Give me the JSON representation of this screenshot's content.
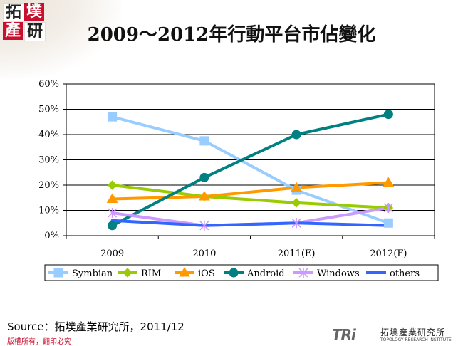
{
  "header": {
    "logo_glyphs": [
      "拓",
      "墣",
      "產",
      "研"
    ],
    "title": "2009～2012年行動平台市佔變化"
  },
  "footer": {
    "source": "Source：拓墣產業研究所，2011/12",
    "copyright": "版權所有，翻印必究",
    "tri_mark": "TRi",
    "tri_cn": "拓墣產業研究所",
    "tri_en": "TOPOLOGY RESEARCH INSTITUTE"
  },
  "chart_data": {
    "type": "line",
    "title": "",
    "xlabel": "",
    "ylabel": "",
    "categories": [
      "2009",
      "2010",
      "2011(E)",
      "2012(F)"
    ],
    "ylim": [
      0,
      60
    ],
    "yticks": [
      "0%",
      "10%",
      "20%",
      "30%",
      "40%",
      "50%",
      "60%"
    ],
    "grid": true,
    "legend_position": "bottom",
    "series": [
      {
        "name": "Symbian",
        "values": [
          47,
          37.5,
          18,
          5
        ],
        "color": "#99ccff",
        "marker": "square"
      },
      {
        "name": "RIM",
        "values": [
          20,
          15.5,
          13,
          11
        ],
        "color": "#99cc00",
        "marker": "diamond"
      },
      {
        "name": "iOS",
        "values": [
          14.5,
          15.5,
          19,
          21
        ],
        "color": "#ff9900",
        "marker": "triangle"
      },
      {
        "name": "Android",
        "values": [
          4,
          23,
          40,
          48
        ],
        "color": "#008080",
        "marker": "circle"
      },
      {
        "name": "Windows",
        "values": [
          9,
          4,
          5,
          11
        ],
        "color": "#cc99ff",
        "marker": "star"
      },
      {
        "name": "others",
        "values": [
          6,
          4,
          5,
          4
        ],
        "color": "#3366ff",
        "marker": "none"
      }
    ]
  }
}
